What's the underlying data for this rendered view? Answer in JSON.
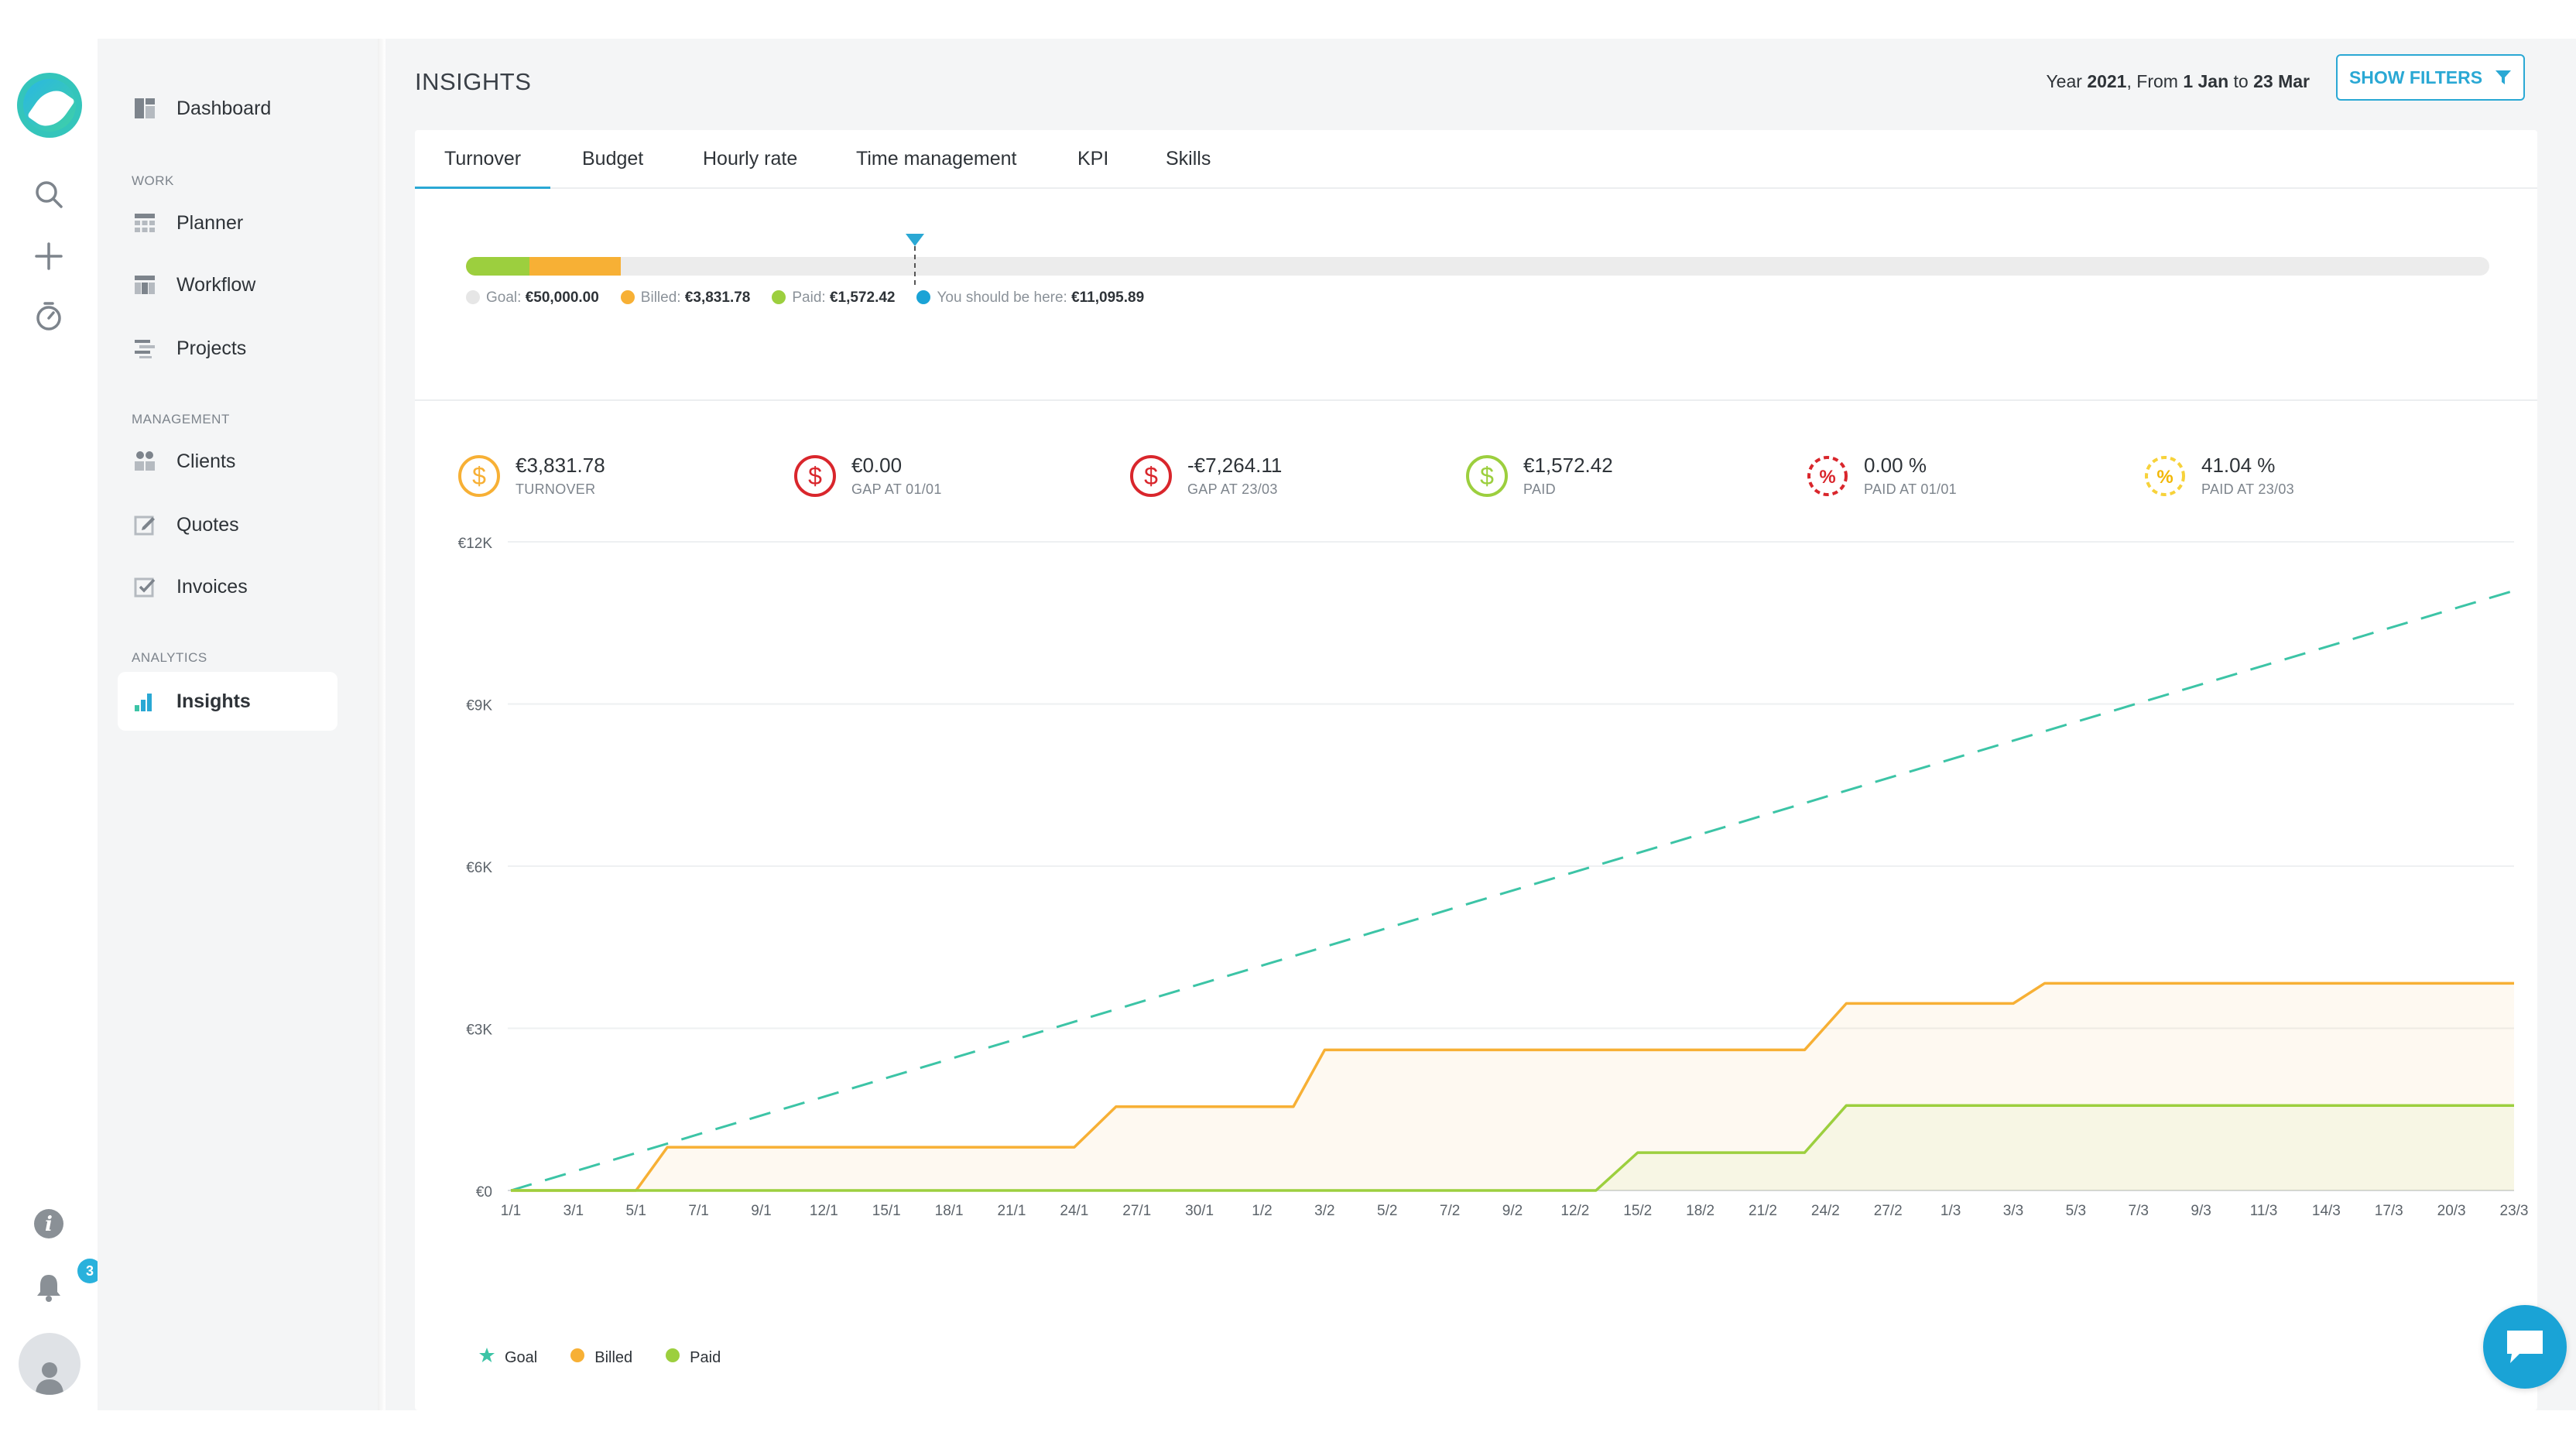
{
  "nav": {
    "dashboard": "Dashboard",
    "section_work": "WORK",
    "planner": "Planner",
    "workflow": "Workflow",
    "projects": "Projects",
    "section_management": "MANAGEMENT",
    "clients": "Clients",
    "quotes": "Quotes",
    "invoices": "Invoices",
    "section_analytics": "ANALYTICS",
    "insights": "Insights"
  },
  "rail": {
    "notification_count": "3"
  },
  "header": {
    "title": "INSIGHTS",
    "date_prefix": "Year ",
    "year": "2021",
    "from_text": ", From ",
    "from": "1 Jan",
    "to_text": " to ",
    "to": "23 Mar",
    "filters_label": "SHOW FILTERS"
  },
  "tabs": [
    "Turnover",
    "Budget",
    "Hourly rate",
    "Time management",
    "KPI",
    "Skills"
  ],
  "progress": {
    "goal_label": "Goal:",
    "goal_value": "€50,000.00",
    "billed_label": "Billed:",
    "billed_value": "€3,831.78",
    "paid_label": "Paid:",
    "paid_value": "€1,572.42",
    "target_label": "You should be here:",
    "target_value": "€11,095.89",
    "goal_amount": 50000,
    "billed_amount": 3831.78,
    "paid_amount": 1572.42,
    "target_amount": 11095.89
  },
  "kpis": [
    {
      "value": "€3,831.78",
      "label": "TURNOVER",
      "icon": "dollar-icon",
      "color": "#f7b035"
    },
    {
      "value": "€0.00",
      "label": "GAP AT 01/01",
      "icon": "dollar-icon",
      "color": "#d9262c"
    },
    {
      "value": "-€7,264.11",
      "label": "GAP AT 23/03",
      "icon": "dollar-icon",
      "color": "#d9262c"
    },
    {
      "value": "€1,572.42",
      "label": "PAID",
      "icon": "dollar-icon",
      "color": "#9ccf3e"
    },
    {
      "value": "0.00 %",
      "label": "PAID AT 01/01",
      "icon": "percent-icon",
      "color": "#d9262c"
    },
    {
      "value": "41.04 %",
      "label": "PAID AT 23/03",
      "icon": "percent-icon",
      "color": "#f7d23a"
    }
  ],
  "chart_data": {
    "type": "area",
    "x": [
      "1/1",
      "3/1",
      "5/1",
      "7/1",
      "9/1",
      "12/1",
      "15/1",
      "18/1",
      "21/1",
      "24/1",
      "27/1",
      "30/1",
      "1/2",
      "3/2",
      "5/2",
      "7/2",
      "9/2",
      "12/2",
      "15/2",
      "18/2",
      "21/2",
      "24/2",
      "27/2",
      "1/3",
      "3/3",
      "5/3",
      "7/3",
      "9/3",
      "11/3",
      "14/3",
      "17/3",
      "20/3",
      "23/3"
    ],
    "y_ticks": [
      "€0",
      "€3K",
      "€6K",
      "€9K",
      "€12K"
    ],
    "ylim": [
      0,
      12000
    ],
    "grid": true,
    "legend": "bottom-left",
    "series": [
      {
        "name": "Goal",
        "style": "dashed-line",
        "color": "#3cc4a6",
        "points": [
          [
            "1/1",
            0
          ],
          [
            "23/3",
            11095.89
          ]
        ]
      },
      {
        "name": "Billed",
        "style": "step-area",
        "color": "#f7b035",
        "points": [
          [
            "1/1",
            0
          ],
          [
            "5/1",
            0
          ],
          [
            "6/1",
            800
          ],
          [
            "24/1",
            800
          ],
          [
            "26/1",
            1550
          ],
          [
            "2/2",
            1550
          ],
          [
            "3/2",
            2600
          ],
          [
            "23/2",
            2600
          ],
          [
            "25/2",
            3460
          ],
          [
            "3/3",
            3460
          ],
          [
            "4/3",
            3831.78
          ],
          [
            "23/3",
            3831.78
          ]
        ]
      },
      {
        "name": "Paid",
        "style": "step-area",
        "color": "#9ccf3e",
        "points": [
          [
            "1/1",
            0
          ],
          [
            "13/2",
            0
          ],
          [
            "15/2",
            700
          ],
          [
            "23/2",
            700
          ],
          [
            "25/2",
            1572.42
          ],
          [
            "23/3",
            1572.42
          ]
        ]
      }
    ]
  }
}
